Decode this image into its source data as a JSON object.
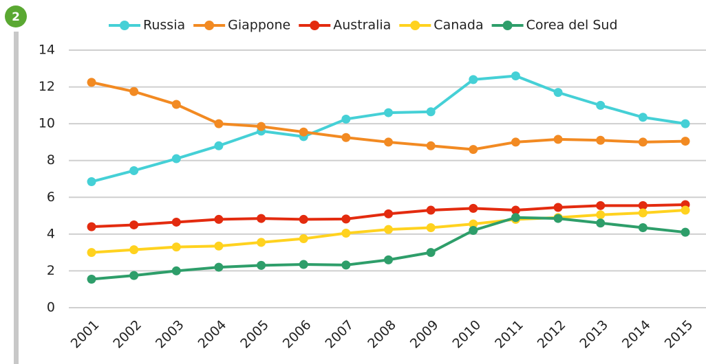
{
  "badge": "2",
  "chart_data": {
    "type": "line",
    "x": [
      "2001",
      "2002",
      "2003",
      "2004",
      "2005",
      "2006",
      "2007",
      "2008",
      "2009",
      "2010",
      "2011",
      "2012",
      "2013",
      "2014",
      "2015"
    ],
    "series": [
      {
        "name": "Russia",
        "color": "#45d0d6",
        "values": [
          6.85,
          7.45,
          8.1,
          8.8,
          9.6,
          9.3,
          10.25,
          10.6,
          10.65,
          12.4,
          12.6,
          11.7,
          11.0,
          10.35,
          10.0
        ]
      },
      {
        "name": "Giappone",
        "color": "#f28a22",
        "values": [
          12.25,
          11.75,
          11.05,
          10.0,
          9.85,
          9.55,
          9.25,
          9.0,
          8.8,
          8.6,
          9.0,
          9.15,
          9.1,
          9.0,
          9.05
        ]
      },
      {
        "name": "Australia",
        "color": "#e32b0f",
        "values": [
          4.4,
          4.5,
          4.65,
          4.8,
          4.85,
          4.8,
          4.82,
          5.1,
          5.3,
          5.4,
          5.3,
          5.45,
          5.55,
          5.55,
          5.6
        ]
      },
      {
        "name": "Canada",
        "color": "#ffd21f",
        "values": [
          3.0,
          3.15,
          3.3,
          3.35,
          3.55,
          3.75,
          4.05,
          4.25,
          4.35,
          4.55,
          4.8,
          4.9,
          5.05,
          5.15,
          5.3
        ]
      },
      {
        "name": "Corea del Sud",
        "color": "#2e9e6a",
        "values": [
          1.55,
          1.75,
          2.0,
          2.2,
          2.3,
          2.35,
          2.32,
          2.6,
          3.0,
          4.2,
          4.9,
          4.85,
          4.6,
          4.35,
          4.1
        ]
      }
    ],
    "ylim": [
      0,
      14
    ],
    "yticks": [
      0,
      2,
      4,
      6,
      8,
      10,
      12,
      14
    ],
    "grid": true,
    "legend": "top"
  }
}
